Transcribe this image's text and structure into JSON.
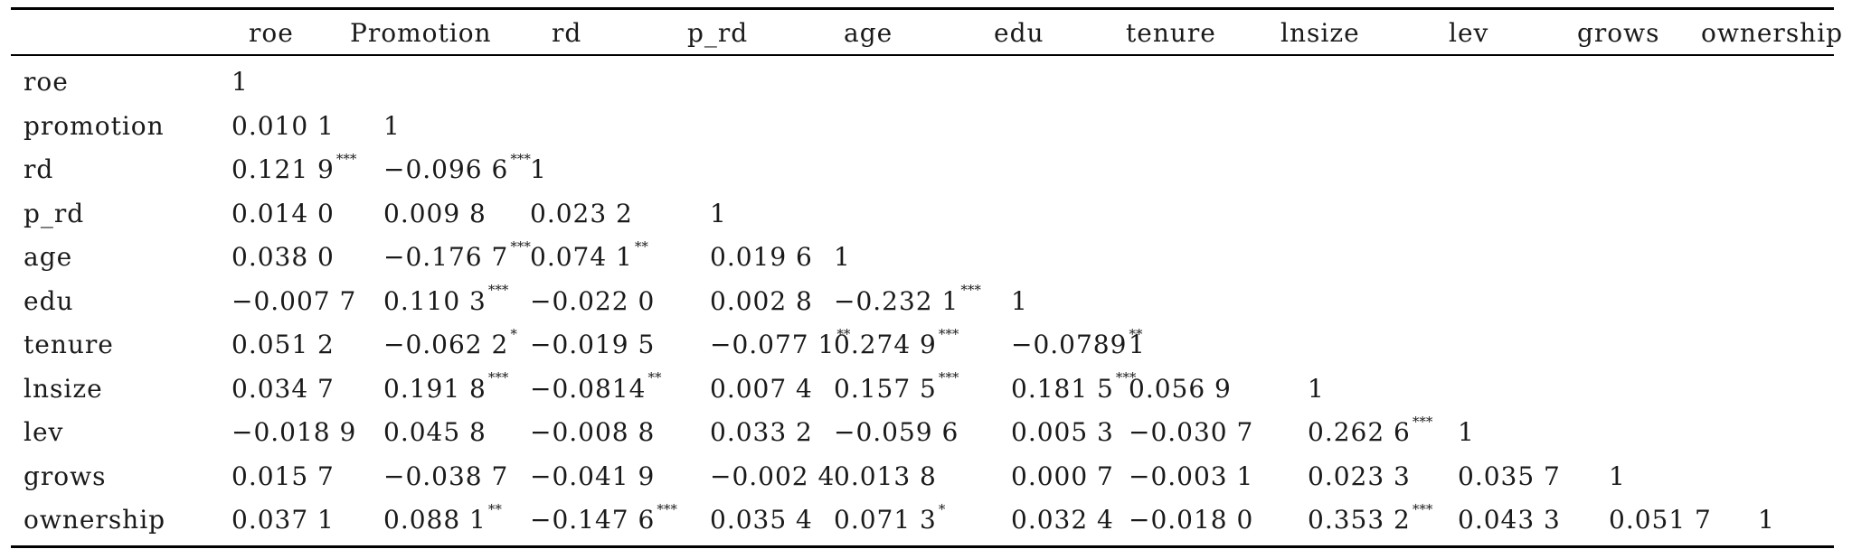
{
  "columns": [
    "roe",
    "Promotion",
    "rd",
    "p_rd",
    "age",
    "edu",
    "tenure",
    "lnsize",
    "lev",
    "grows",
    "ownership"
  ],
  "rows": [
    {
      "label": "roe",
      "cells": [
        {
          "v": "1",
          "s": ""
        }
      ]
    },
    {
      "label": "promotion",
      "cells": [
        {
          "v": "0.010 1",
          "s": ""
        },
        {
          "v": "1",
          "s": ""
        }
      ]
    },
    {
      "label": "rd",
      "cells": [
        {
          "v": "0.121 9",
          "s": "***"
        },
        {
          "v": "−0.096 6",
          "s": "***"
        },
        {
          "v": "1",
          "s": ""
        }
      ]
    },
    {
      "label": "p_rd",
      "cells": [
        {
          "v": "0.014 0",
          "s": ""
        },
        {
          "v": "0.009 8",
          "s": ""
        },
        {
          "v": "0.023 2",
          "s": ""
        },
        {
          "v": "1",
          "s": ""
        }
      ]
    },
    {
      "label": "age",
      "cells": [
        {
          "v": "0.038 0",
          "s": ""
        },
        {
          "v": "−0.176 7",
          "s": "***"
        },
        {
          "v": "0.074 1",
          "s": "**"
        },
        {
          "v": "0.019 6",
          "s": ""
        },
        {
          "v": "1",
          "s": ""
        }
      ]
    },
    {
      "label": "edu",
      "cells": [
        {
          "v": "−0.007 7",
          "s": ""
        },
        {
          "v": "0.110 3",
          "s": "***"
        },
        {
          "v": "−0.022 0",
          "s": ""
        },
        {
          "v": "0.002 8",
          "s": ""
        },
        {
          "v": "−0.232 1",
          "s": "***"
        },
        {
          "v": "1",
          "s": ""
        }
      ]
    },
    {
      "label": "tenure",
      "cells": [
        {
          "v": "0.051 2",
          "s": ""
        },
        {
          "v": "−0.062 2",
          "s": "*"
        },
        {
          "v": "−0.019 5",
          "s": ""
        },
        {
          "v": "−0.077 1",
          "s": "**"
        },
        {
          "v": "0.274 9",
          "s": "***"
        },
        {
          "v": "−0.0789",
          "s": "**"
        },
        {
          "v": "1",
          "s": ""
        }
      ]
    },
    {
      "label": "lnsize",
      "cells": [
        {
          "v": "0.034 7",
          "s": ""
        },
        {
          "v": "0.191 8",
          "s": "***"
        },
        {
          "v": "−0.0814",
          "s": "**"
        },
        {
          "v": "0.007 4",
          "s": ""
        },
        {
          "v": "0.157 5",
          "s": "***"
        },
        {
          "v": "0.181 5",
          "s": "***"
        },
        {
          "v": "0.056 9",
          "s": ""
        },
        {
          "v": "1",
          "s": ""
        }
      ]
    },
    {
      "label": "lev",
      "cells": [
        {
          "v": "−0.018 9",
          "s": ""
        },
        {
          "v": "0.045 8",
          "s": ""
        },
        {
          "v": "−0.008 8",
          "s": ""
        },
        {
          "v": "0.033 2",
          "s": ""
        },
        {
          "v": "−0.059 6",
          "s": ""
        },
        {
          "v": "0.005 3",
          "s": ""
        },
        {
          "v": "−0.030 7",
          "s": ""
        },
        {
          "v": "0.262 6",
          "s": "***"
        },
        {
          "v": "1",
          "s": ""
        }
      ]
    },
    {
      "label": "grows",
      "cells": [
        {
          "v": "0.015 7",
          "s": ""
        },
        {
          "v": "−0.038 7",
          "s": ""
        },
        {
          "v": "−0.041 9",
          "s": ""
        },
        {
          "v": "−0.002 4",
          "s": ""
        },
        {
          "v": "0.013 8",
          "s": ""
        },
        {
          "v": "0.000 7",
          "s": ""
        },
        {
          "v": "−0.003 1",
          "s": ""
        },
        {
          "v": "0.023 3",
          "s": ""
        },
        {
          "v": "0.035 7",
          "s": ""
        },
        {
          "v": "1",
          "s": ""
        }
      ]
    },
    {
      "label": "ownership",
      "cells": [
        {
          "v": "0.037 1",
          "s": ""
        },
        {
          "v": "0.088 1",
          "s": "**"
        },
        {
          "v": "−0.147 6",
          "s": "***"
        },
        {
          "v": "0.035 4",
          "s": ""
        },
        {
          "v": "0.071 3",
          "s": "*"
        },
        {
          "v": "0.032 4",
          "s": ""
        },
        {
          "v": "−0.018 0",
          "s": ""
        },
        {
          "v": "0.353 2",
          "s": "***"
        },
        {
          "v": "0.043 3",
          "s": ""
        },
        {
          "v": "0.051 7",
          "s": ""
        },
        {
          "v": "1",
          "s": ""
        }
      ]
    }
  ]
}
